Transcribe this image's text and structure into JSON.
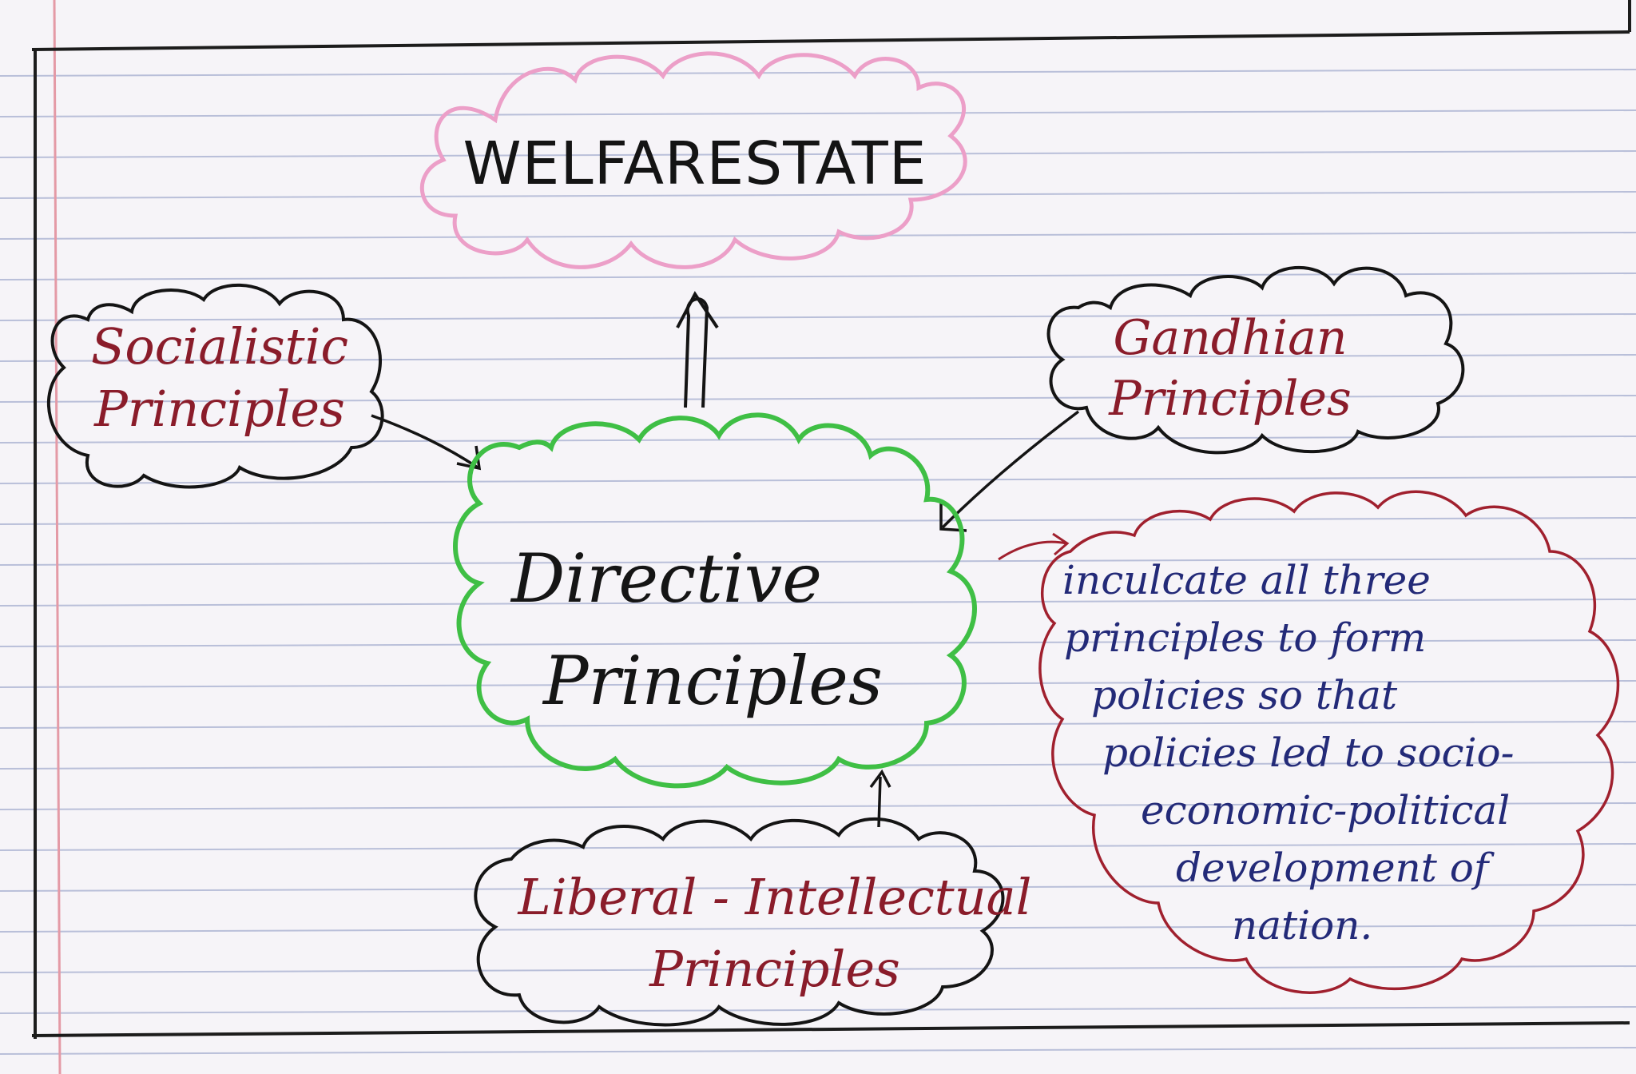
{
  "diagram": {
    "center": {
      "line1": "Directive",
      "line2": "Principles"
    },
    "top": {
      "label": "WELFARESTATE"
    },
    "left": {
      "line1": "Socialistic",
      "line2": "Principles"
    },
    "right": {
      "line1": "Gandhian",
      "line2": "Principles"
    },
    "bottom": {
      "line1": "Liberal - Intellectual",
      "line2": "Principles"
    },
    "note": {
      "lines": [
        "inculcate all three",
        "principles to form",
        "policies so that",
        "policies led to socio-",
        "economic-political",
        "development of",
        "nation."
      ]
    }
  },
  "colors": {
    "paper": "#f6f4f8",
    "ruled_line": "#b9bfd9",
    "margin_line": "#e49aa6",
    "welfare_cloud": "#ec9fc8",
    "center_cloud": "#3fbf45",
    "note_cloud": "#a0202e",
    "principle_text": "#8a1c2a",
    "note_text": "#232a78",
    "ink": "#141414"
  }
}
